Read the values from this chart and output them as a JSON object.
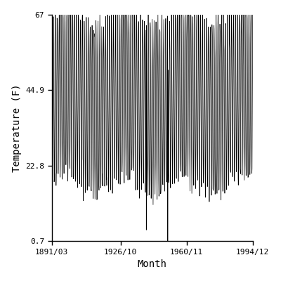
{
  "title": "",
  "xlabel": "Month",
  "ylabel": "Temperature (F)",
  "yticks": [
    0.7,
    22.8,
    44.9,
    67
  ],
  "xtick_labels": [
    "1891/03",
    "1926/10",
    "1960/11",
    "1994/12"
  ],
  "xtick_years": [
    1891,
    1926,
    1960,
    1994
  ],
  "xtick_months": [
    3,
    10,
    11,
    12
  ],
  "start_year": 1891,
  "start_month": 3,
  "end_year": 1994,
  "end_month": 12,
  "ylim": [
    0.7,
    67.0
  ],
  "line_color": "#000000",
  "line_width": 0.5,
  "bg_color": "#ffffff",
  "mean_temp": 42.0,
  "amplitude": 25.0,
  "noise_std": 2.0,
  "cold_outlier_year": 1951,
  "cold_outlier_month": 2,
  "cold_outlier_val": 0.7,
  "figsize": [
    4.0,
    4.0
  ],
  "dpi": 100
}
